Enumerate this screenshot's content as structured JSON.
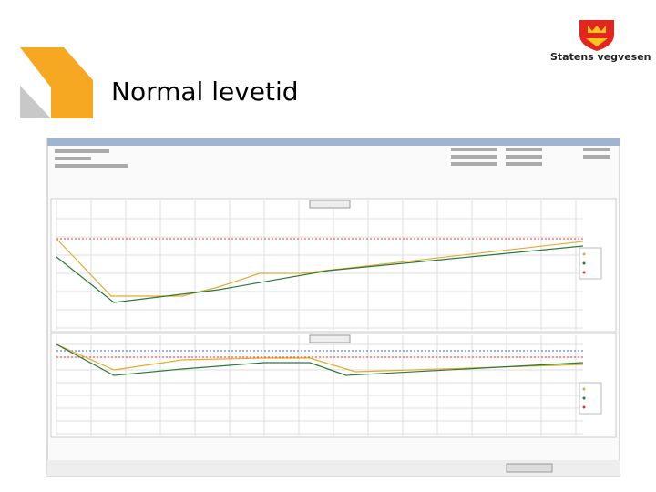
{
  "header": {
    "title": "Normal levetid"
  },
  "logo": {
    "text": "Statens vegvesen"
  }
}
